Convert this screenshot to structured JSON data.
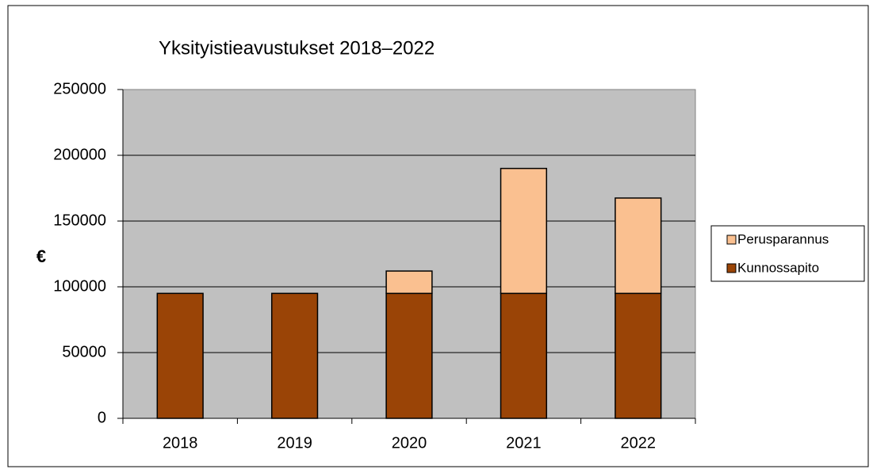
{
  "chart_data": {
    "type": "stacked_bar",
    "title": "Yksityistieavustukset 2018–2022",
    "y_label": "€",
    "categories": [
      "2018",
      "2019",
      "2020",
      "2021",
      "2022"
    ],
    "series": [
      {
        "name": "Kunnossapito",
        "color": "#9a4406",
        "values": [
          95000,
          95000,
          95000,
          95000,
          95000
        ]
      },
      {
        "name": "Perusparannus",
        "color": "#fac090",
        "values": [
          0,
          0,
          17000,
          95000,
          72500
        ]
      }
    ],
    "ylim": [
      0,
      250000
    ],
    "yticks": [
      0,
      50000,
      100000,
      150000,
      200000,
      250000
    ],
    "grid": true,
    "plot_background": "#c0c0c0",
    "legend": "right"
  }
}
